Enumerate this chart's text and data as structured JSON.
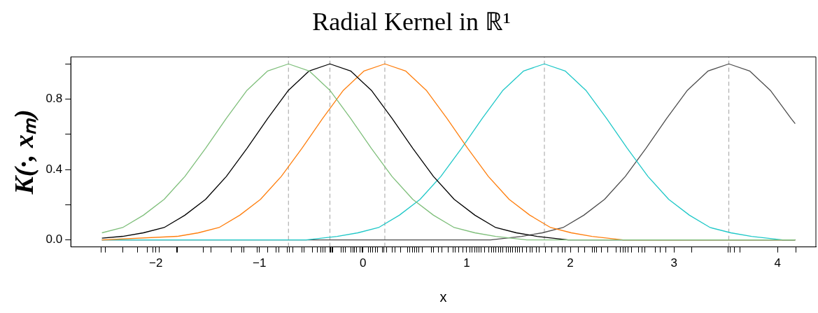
{
  "chart_data": {
    "type": "line",
    "title": "Radial Kernel in ℝ¹",
    "xlabel": "x",
    "ylabel": "K(·, xₘ)",
    "xlim": [
      -2.82,
      4.37
    ],
    "ylim": [
      -0.04,
      1.04
    ],
    "xticks": [
      {
        "value": -2,
        "label": "−2"
      },
      {
        "value": -1,
        "label": "−1"
      },
      0,
      1,
      2,
      3,
      4,
      {
        "value": -2.53,
        "label": null
      },
      {
        "value": -2.49,
        "label": null
      },
      {
        "value": -2.32,
        "label": null
      },
      {
        "value": -2.18,
        "label": null
      },
      {
        "value": -2.08,
        "label": null
      },
      {
        "value": -2.03,
        "label": null
      },
      {
        "value": -1.97,
        "label": null
      },
      {
        "value": -1.8,
        "label": null
      },
      {
        "value": -1.79,
        "label": null
      },
      {
        "value": -1.54,
        "label": null
      },
      {
        "value": -1.47,
        "label": null
      },
      {
        "value": -1.27,
        "label": null
      },
      {
        "value": -1.17,
        "label": null
      },
      {
        "value": -1.15,
        "label": null
      },
      {
        "value": -1.02,
        "label": null
      },
      {
        "value": -0.92,
        "label": null
      },
      {
        "value": -0.84,
        "label": null
      },
      {
        "value": -0.81,
        "label": null
      },
      {
        "value": -0.73,
        "label": null
      },
      {
        "value": -0.71,
        "label": null
      },
      {
        "value": -0.68,
        "label": null
      },
      {
        "value": -0.59,
        "label": null
      },
      {
        "value": -0.57,
        "label": null
      },
      {
        "value": -0.49,
        "label": null
      },
      {
        "value": -0.44,
        "label": null
      },
      {
        "value": -0.41,
        "label": null
      },
      {
        "value": -0.39,
        "label": null
      },
      {
        "value": -0.37,
        "label": null
      },
      {
        "value": -0.32,
        "label": null
      },
      {
        "value": -0.31,
        "label": null
      },
      {
        "value": -0.3,
        "label": null
      },
      {
        "value": -0.29,
        "label": null
      },
      {
        "value": -0.21,
        "label": null
      },
      {
        "value": -0.19,
        "label": null
      },
      {
        "value": -0.17,
        "label": null
      },
      {
        "value": -0.12,
        "label": null
      },
      {
        "value": -0.1,
        "label": null
      },
      {
        "value": -0.08,
        "label": null
      },
      {
        "value": -0.06,
        "label": null
      },
      {
        "value": -0.03,
        "label": null
      },
      {
        "value": -0.01,
        "label": null
      },
      {
        "value": 0.05,
        "label": null
      },
      {
        "value": 0.07,
        "label": null
      },
      {
        "value": 0.09,
        "label": null
      },
      {
        "value": 0.12,
        "label": null
      },
      {
        "value": 0.14,
        "label": null
      },
      {
        "value": 0.19,
        "label": null
      },
      {
        "value": 0.2,
        "label": null
      },
      {
        "value": 0.23,
        "label": null
      },
      {
        "value": 0.28,
        "label": null
      },
      {
        "value": 0.31,
        "label": null
      },
      {
        "value": 0.36,
        "label": null
      },
      {
        "value": 0.43,
        "label": null
      },
      {
        "value": 0.45,
        "label": null
      },
      {
        "value": 0.48,
        "label": null
      },
      {
        "value": 0.5,
        "label": null
      },
      {
        "value": 0.52,
        "label": null
      },
      {
        "value": 0.54,
        "label": null
      },
      {
        "value": 0.57,
        "label": null
      },
      {
        "value": 0.66,
        "label": null
      },
      {
        "value": 0.68,
        "label": null
      },
      {
        "value": 0.73,
        "label": null
      },
      {
        "value": 0.76,
        "label": null
      },
      {
        "value": 0.82,
        "label": null
      },
      {
        "value": 0.87,
        "label": null
      },
      {
        "value": 0.89,
        "label": null
      },
      {
        "value": 0.92,
        "label": null
      },
      {
        "value": 0.96,
        "label": null
      },
      {
        "value": 1.03,
        "label": null
      },
      {
        "value": 1.05,
        "label": null
      },
      {
        "value": 1.08,
        "label": null
      },
      {
        "value": 1.1,
        "label": null
      },
      {
        "value": 1.12,
        "label": null
      },
      {
        "value": 1.14,
        "label": null
      },
      {
        "value": 1.17,
        "label": null
      },
      {
        "value": 1.21,
        "label": null
      },
      {
        "value": 1.24,
        "label": null
      },
      {
        "value": 1.26,
        "label": null
      },
      {
        "value": 1.28,
        "label": null
      },
      {
        "value": 1.31,
        "label": null
      },
      {
        "value": 1.33,
        "label": null
      },
      {
        "value": 1.35,
        "label": null
      },
      {
        "value": 1.38,
        "label": null
      },
      {
        "value": 1.4,
        "label": null
      },
      {
        "value": 1.42,
        "label": null
      },
      {
        "value": 1.44,
        "label": null
      },
      {
        "value": 1.47,
        "label": null
      },
      {
        "value": 1.49,
        "label": null
      },
      {
        "value": 1.51,
        "label": null
      },
      {
        "value": 1.54,
        "label": null
      },
      {
        "value": 1.58,
        "label": null
      },
      {
        "value": 1.61,
        "label": null
      },
      {
        "value": 1.63,
        "label": null
      },
      {
        "value": 1.67,
        "label": null
      },
      {
        "value": 1.7,
        "label": null
      },
      {
        "value": 1.76,
        "label": null
      },
      {
        "value": 1.82,
        "label": null
      },
      {
        "value": 1.88,
        "label": null
      },
      {
        "value": 1.92,
        "label": null
      },
      {
        "value": 1.95,
        "label": null
      },
      {
        "value": 2.08,
        "label": null
      },
      {
        "value": 2.14,
        "label": null
      },
      {
        "value": 2.21,
        "label": null
      },
      {
        "value": 2.23,
        "label": null
      },
      {
        "value": 2.25,
        "label": null
      },
      {
        "value": 2.3,
        "label": null
      },
      {
        "value": 2.36,
        "label": null
      },
      {
        "value": 2.44,
        "label": null
      },
      {
        "value": 2.48,
        "label": null
      },
      {
        "value": 2.51,
        "label": null
      },
      {
        "value": 2.53,
        "label": null
      },
      {
        "value": 2.56,
        "label": null
      },
      {
        "value": 2.59,
        "label": null
      },
      {
        "value": 2.66,
        "label": null
      },
      {
        "value": 2.69,
        "label": null
      },
      {
        "value": 2.72,
        "label": null
      },
      {
        "value": 2.82,
        "label": null
      },
      {
        "value": 2.87,
        "label": null
      },
      {
        "value": 2.92,
        "label": null
      },
      {
        "value": 3.17,
        "label": null
      },
      {
        "value": 3.52,
        "label": null
      },
      {
        "value": 3.54,
        "label": null
      },
      {
        "value": 3.58,
        "label": null
      },
      {
        "value": 3.64,
        "label": null
      },
      {
        "value": 4.18,
        "label": null
      }
    ],
    "yticks": [
      {
        "value": 0,
        "label": "0.0"
      },
      {
        "value": 0.2,
        "label": null
      },
      {
        "value": 0.4,
        "label": "0.4"
      },
      {
        "value": 0.6,
        "label": null
      },
      {
        "value": 0.8,
        "label": "0.8"
      },
      {
        "value": 1,
        "label": null
      }
    ],
    "marker": "none",
    "line_style": "solid",
    "series": [
      {
        "color": "#7fbf7b",
        "x": [
          -2.52,
          -2.32,
          -2.12,
          -1.92,
          -1.72,
          -1.52,
          -1.32,
          -1.12,
          -0.92,
          -0.72,
          -0.52,
          -0.32,
          -0.12,
          0.08,
          0.28,
          0.48,
          0.68,
          0.88,
          1.08,
          1.28,
          1.58,
          2.5,
          4.17
        ],
        "values": [
          0.04,
          0.07,
          0.14,
          0.23,
          0.36,
          0.52,
          0.69,
          0.85,
          0.96,
          1,
          0.96,
          0.85,
          0.69,
          0.52,
          0.36,
          0.23,
          0.14,
          0.07,
          0.04,
          0.02,
          0,
          0,
          0
        ]
      },
      {
        "color": "#000000",
        "x": [
          -2.52,
          -2.32,
          -2.12,
          -1.92,
          -1.72,
          -1.52,
          -1.32,
          -1.12,
          -0.92,
          -0.72,
          -0.52,
          -0.32,
          -0.12,
          0.08,
          0.28,
          0.48,
          0.68,
          0.88,
          1.08,
          1.28,
          1.48,
          1.68,
          1.98,
          3,
          4.17
        ],
        "values": [
          0.01,
          0.02,
          0.04,
          0.07,
          0.14,
          0.23,
          0.36,
          0.52,
          0.69,
          0.85,
          0.96,
          1,
          0.96,
          0.85,
          0.69,
          0.52,
          0.36,
          0.23,
          0.14,
          0.07,
          0.04,
          0.02,
          0,
          0,
          0
        ]
      },
      {
        "color": "#ff7f0e",
        "x": [
          -2.52,
          -1.79,
          -1.59,
          -1.39,
          -1.19,
          -0.99,
          -0.79,
          -0.59,
          -0.39,
          -0.19,
          0.01,
          0.21,
          0.41,
          0.61,
          0.81,
          1.01,
          1.21,
          1.41,
          1.61,
          1.81,
          2.01,
          2.21,
          2.51,
          3.5,
          4.17
        ],
        "values": [
          0,
          0.02,
          0.04,
          0.07,
          0.14,
          0.23,
          0.36,
          0.52,
          0.69,
          0.85,
          0.96,
          1,
          0.96,
          0.85,
          0.69,
          0.52,
          0.36,
          0.23,
          0.14,
          0.07,
          0.04,
          0.02,
          0,
          0,
          0
        ]
      },
      {
        "color": "#20c8c8",
        "x": [
          -2.52,
          -0.55,
          -0.25,
          -0.05,
          0.15,
          0.35,
          0.55,
          0.75,
          0.95,
          1.15,
          1.35,
          1.55,
          1.75,
          1.95,
          2.15,
          2.35,
          2.55,
          2.75,
          2.95,
          3.15,
          3.35,
          3.55,
          3.75,
          4.05,
          4.17
        ],
        "values": [
          0,
          0,
          0.02,
          0.04,
          0.07,
          0.14,
          0.23,
          0.36,
          0.52,
          0.69,
          0.85,
          0.96,
          1,
          0.96,
          0.85,
          0.69,
          0.52,
          0.36,
          0.23,
          0.14,
          0.07,
          0.04,
          0.02,
          0,
          0
        ]
      },
      {
        "color": "#4d4d4d",
        "x": [
          -2.52,
          1.23,
          1.53,
          1.73,
          1.93,
          2.13,
          2.33,
          2.53,
          2.73,
          2.93,
          3.13,
          3.33,
          3.53,
          3.73,
          3.93,
          4.13,
          4.17
        ],
        "values": [
          0,
          0,
          0.02,
          0.04,
          0.07,
          0.14,
          0.23,
          0.36,
          0.52,
          0.69,
          0.85,
          0.96,
          1,
          0.96,
          0.85,
          0.69,
          0.66
        ]
      }
    ],
    "ref_lines": [
      {
        "axis": "x",
        "value": -0.72,
        "color": "#a0a0a0",
        "line_style": "dashed"
      },
      {
        "axis": "x",
        "value": -0.32,
        "color": "#a0a0a0",
        "line_style": "dashed"
      },
      {
        "axis": "x",
        "value": 0.21,
        "color": "#a0a0a0",
        "line_style": "dashed"
      },
      {
        "axis": "x",
        "value": 1.75,
        "color": "#a0a0a0",
        "line_style": "dashed"
      },
      {
        "axis": "x",
        "value": 3.53,
        "color": "#a0a0a0",
        "line_style": "dashed"
      }
    ]
  }
}
